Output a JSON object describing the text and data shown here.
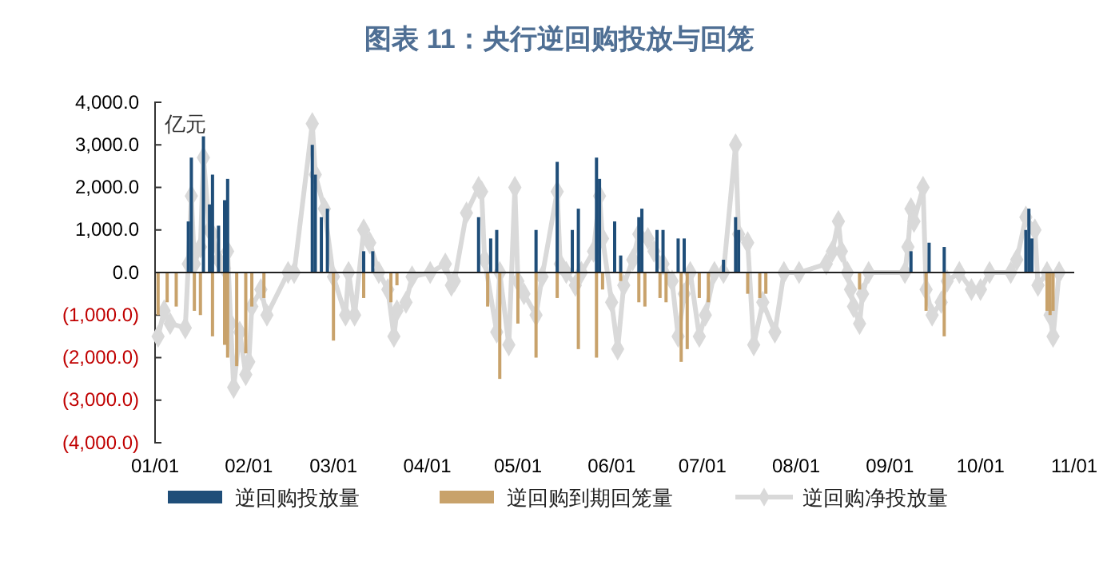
{
  "chart_data": {
    "type": "bar",
    "title": "图表 11：央行逆回购投放与回笼",
    "ylabel": "亿元",
    "xlim": [
      "--01-01",
      "--11-01"
    ],
    "xticks": [
      {
        "value": "--01-01",
        "label": "01/01"
      },
      {
        "value": "--02-01",
        "label": "02/01"
      },
      {
        "value": "--03-01",
        "label": "03/01"
      },
      {
        "value": "--04-01",
        "label": "04/01"
      },
      {
        "value": "--05-01",
        "label": "05/01"
      },
      {
        "value": "--06-01",
        "label": "06/01"
      },
      {
        "value": "--07-01",
        "label": "07/01"
      },
      {
        "value": "--08-01",
        "label": "08/01"
      },
      {
        "value": "--09-01",
        "label": "09/01"
      },
      {
        "value": "--10-01",
        "label": "10/01"
      },
      {
        "value": "--11-01",
        "label": "11/01"
      }
    ],
    "ylim": [
      -4000,
      4000
    ],
    "yticks": [
      {
        "value": 4000,
        "label": "4,000.0"
      },
      {
        "value": 3000,
        "label": "3,000.0"
      },
      {
        "value": 2000,
        "label": "2,000.0"
      },
      {
        "value": 1000,
        "label": "1,000.0"
      },
      {
        "value": 0,
        "label": "0.0"
      },
      {
        "value": -1000,
        "label": "(1,000.0)"
      },
      {
        "value": -2000,
        "label": "(2,000.0)"
      },
      {
        "value": -3000,
        "label": "(3,000.0)"
      },
      {
        "value": -4000,
        "label": "(4,000.0)"
      }
    ],
    "legend": "bottom",
    "series": [
      {
        "name": "逆回购投放量",
        "color": "#1f4e79",
        "x": [
          "--01-12",
          "--01-13",
          "--01-17",
          "--01-19",
          "--01-20",
          "--01-22",
          "--01-24",
          "--01-25",
          "--02-22",
          "--02-23",
          "--02-25",
          "--02-27",
          "--03-11",
          "--03-14",
          "--04-18",
          "--04-22",
          "--04-24",
          "--05-07",
          "--05-14",
          "--05-19",
          "--05-21",
          "--05-27",
          "--05-28",
          "--06-02",
          "--06-04",
          "--06-10",
          "--06-11",
          "--06-16",
          "--06-18",
          "--06-23",
          "--06-25",
          "--07-08",
          "--07-12",
          "--07-13",
          "--09-08",
          "--09-14",
          "--09-19",
          "--10-16",
          "--10-17",
          "--10-18"
        ],
        "values": [
          1200,
          2700,
          3200,
          1600,
          2300,
          1100,
          1700,
          2200,
          3000,
          2300,
          1300,
          1500,
          500,
          500,
          1300,
          800,
          1000,
          1000,
          2600,
          1000,
          1500,
          2700,
          2200,
          1200,
          400,
          1300,
          1500,
          1000,
          1000,
          800,
          800,
          300,
          1300,
          1000,
          500,
          700,
          600,
          1000,
          1500,
          800
        ]
      },
      {
        "name": "逆回购到期回笼量",
        "color": "#c8a26b",
        "x": [
          "--01-02",
          "--01-05",
          "--01-08",
          "--01-14",
          "--01-16",
          "--01-20",
          "--01-24",
          "--01-25",
          "--01-28",
          "--01-31",
          "--02-02",
          "--02-06",
          "--03-01",
          "--03-11",
          "--03-20",
          "--03-22",
          "--04-21",
          "--04-25",
          "--05-01",
          "--05-07",
          "--05-14",
          "--05-21",
          "--05-27",
          "--05-29",
          "--06-04",
          "--06-10",
          "--06-12",
          "--06-17",
          "--06-19",
          "--06-24",
          "--06-26",
          "--06-30",
          "--07-03",
          "--07-16",
          "--07-20",
          "--07-22",
          "--08-22",
          "--09-13",
          "--09-19",
          "--10-23",
          "--10-24",
          "--10-25"
        ],
        "values": [
          -1000,
          -700,
          -800,
          -900,
          -1000,
          -1500,
          -1700,
          -2000,
          -2200,
          -1900,
          -800,
          -600,
          -1600,
          -600,
          -700,
          -300,
          -800,
          -2500,
          -1200,
          -2000,
          -600,
          -1800,
          -2000,
          -400,
          -200,
          -700,
          -800,
          -600,
          -700,
          -2100,
          -1800,
          -600,
          -700,
          -500,
          -600,
          -500,
          -400,
          -900,
          -1500,
          -900,
          -1000,
          -900
        ]
      },
      {
        "name": "逆回购净投放量",
        "type": "line",
        "color": "#d9d9d9",
        "marker": "diamond",
        "line_style": "solid",
        "x": [
          "--01-02",
          "--01-04",
          "--01-06",
          "--01-11",
          "--01-12",
          "--01-13",
          "--01-14",
          "--01-16",
          "--01-17",
          "--01-19",
          "--01-20",
          "--01-22",
          "--01-24",
          "--01-25",
          "--01-26",
          "--01-27",
          "--01-29",
          "--01-31",
          "--02-01",
          "--02-02",
          "--02-05",
          "--02-07",
          "--02-14",
          "--02-16",
          "--02-22",
          "--02-23",
          "--02-26",
          "--03-01",
          "--03-05",
          "--03-06",
          "--03-08",
          "--03-11",
          "--03-13",
          "--03-16",
          "--03-19",
          "--03-21",
          "--03-22",
          "--03-25",
          "--03-27",
          "--04-02",
          "--04-07",
          "--04-09",
          "--04-10",
          "--04-14",
          "--04-18",
          "--04-19",
          "--04-20",
          "--04-24",
          "--04-25",
          "--04-28",
          "--04-30",
          "--05-01",
          "--05-03",
          "--05-07",
          "--05-09",
          "--05-14",
          "--05-15",
          "--05-17",
          "--05-20",
          "--05-22",
          "--05-26",
          "--05-28",
          "--05-29",
          "--06-01",
          "--06-03",
          "--06-05",
          "--06-08",
          "--06-10",
          "--06-13",
          "--06-15",
          "--06-18",
          "--06-21",
          "--06-23",
          "--06-25",
          "--06-27",
          "--06-30",
          "--07-02",
          "--07-05",
          "--07-08",
          "--07-12",
          "--07-13",
          "--07-16",
          "--07-18",
          "--07-21",
          "--07-25",
          "--07-28",
          "--08-02",
          "--08-11",
          "--08-13",
          "--08-15",
          "--08-16",
          "--08-18",
          "--08-19",
          "--08-20",
          "--08-22",
          "--08-23",
          "--08-25",
          "--09-06",
          "--09-07",
          "--09-08",
          "--09-09",
          "--09-12",
          "--09-13",
          "--09-15",
          "--09-18",
          "--09-20",
          "--09-24",
          "--09-28",
          "--10-01",
          "--10-04",
          "--10-11",
          "--10-13",
          "--10-16",
          "--10-19",
          "--10-20",
          "--10-23",
          "--10-24",
          "--10-25",
          "--10-27"
        ],
        "values": [
          -1500,
          -900,
          -1200,
          -1300,
          200,
          1800,
          200,
          600,
          2700,
          1000,
          900,
          300,
          100,
          500,
          -1200,
          -2700,
          -1400,
          -2400,
          -2100,
          -800,
          -400,
          -1000,
          0,
          0,
          3500,
          2300,
          1500,
          -100,
          -1000,
          0,
          -1000,
          1000,
          700,
          0,
          -400,
          -1500,
          -900,
          -700,
          -100,
          0,
          200,
          -300,
          -200,
          1400,
          2000,
          1900,
          300,
          -1400,
          0,
          -1700,
          2000,
          -200,
          -500,
          -1000,
          -100,
          1900,
          200,
          0,
          -300,
          0,
          500,
          1800,
          800,
          -700,
          -1800,
          -300,
          300,
          900,
          800,
          500,
          200,
          -200,
          -1500,
          -500,
          0,
          -1500,
          -1000,
          0,
          0,
          3000,
          900,
          700,
          -1700,
          -700,
          -1400,
          0,
          0,
          200,
          500,
          1200,
          500,
          0,
          -400,
          -800,
          -1200,
          -500,
          0,
          0,
          600,
          1500,
          1200,
          2000,
          -400,
          -1000,
          -700,
          -200,
          0,
          -400,
          -400,
          0,
          0,
          300,
          1300,
          1000,
          -300,
          0,
          -1000,
          -1500,
          0
        ]
      }
    ]
  }
}
